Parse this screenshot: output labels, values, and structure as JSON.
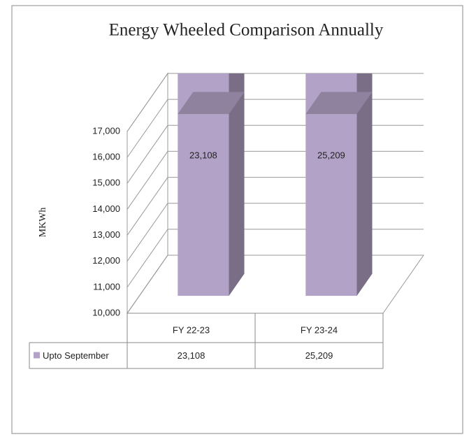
{
  "chart_data": {
    "type": "bar3d",
    "title": "Energy Wheeled Comparison Annually",
    "y_label": "MKWh",
    "categories": [
      "FY 22-23",
      "FY 23-24"
    ],
    "series": [
      {
        "name": "Upto September",
        "color": "#b3a2c7",
        "values": [
          23108,
          25209
        ],
        "value_labels": [
          "23,108",
          "25,209"
        ]
      }
    ],
    "ylim": [
      10000,
      17000
    ],
    "yticks": [
      {
        "value": 10000,
        "label": "10,000"
      },
      {
        "value": 11000,
        "label": "11,000"
      },
      {
        "value": 12000,
        "label": "12,000"
      },
      {
        "value": 13000,
        "label": "13,000"
      },
      {
        "value": 14000,
        "label": "14,000"
      },
      {
        "value": 15000,
        "label": "15,000"
      },
      {
        "value": 16000,
        "label": "16,000"
      },
      {
        "value": 17000,
        "label": "17,000"
      }
    ],
    "grid": true
  }
}
